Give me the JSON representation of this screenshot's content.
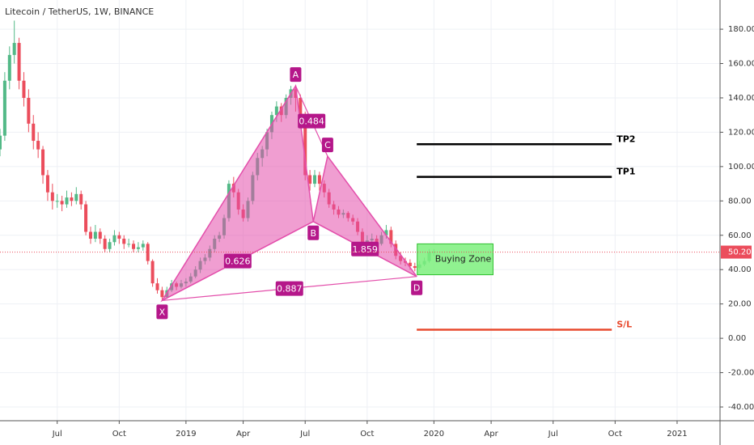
{
  "chart_data": {
    "type": "candlestick",
    "title": "Litecoin / TetherUS, 1W, BINANCE",
    "up_color": "#53b987",
    "down_color": "#eb4d5c",
    "grid": true,
    "candles": [
      [
        110,
        122,
        106,
        118
      ],
      [
        118,
        155,
        115,
        150
      ],
      [
        150,
        170,
        145,
        165
      ],
      [
        165,
        185,
        160,
        172
      ],
      [
        172,
        175,
        145,
        150
      ],
      [
        150,
        155,
        135,
        140
      ],
      [
        140,
        145,
        120,
        125
      ],
      [
        125,
        130,
        110,
        115
      ],
      [
        115,
        120,
        105,
        110
      ],
      [
        110,
        112,
        90,
        95
      ],
      [
        95,
        98,
        80,
        85
      ],
      [
        85,
        90,
        75,
        80
      ],
      [
        80,
        84,
        76,
        80
      ],
      [
        80,
        83,
        74,
        78
      ],
      [
        78,
        86,
        76,
        82
      ],
      [
        82,
        85,
        77,
        80
      ],
      [
        80,
        88,
        78,
        84
      ],
      [
        84,
        86,
        75,
        78
      ],
      [
        78,
        80,
        60,
        62
      ],
      [
        62,
        65,
        55,
        58
      ],
      [
        58,
        66,
        56,
        62
      ],
      [
        62,
        64,
        55,
        58
      ],
      [
        58,
        60,
        50,
        52
      ],
      [
        52,
        58,
        50,
        56
      ],
      [
        56,
        63,
        54,
        60
      ],
      [
        60,
        62,
        55,
        58
      ],
      [
        58,
        60,
        52,
        55
      ],
      [
        55,
        58,
        53,
        55
      ],
      [
        55,
        57,
        50,
        52
      ],
      [
        52,
        56,
        50,
        53
      ],
      [
        53,
        57,
        51,
        55
      ],
      [
        55,
        56,
        43,
        45
      ],
      [
        45,
        46,
        30,
        32
      ],
      [
        32,
        35,
        26,
        28
      ],
      [
        28,
        30,
        22,
        24
      ],
      [
        24,
        30,
        23,
        28
      ],
      [
        28,
        34,
        27,
        32
      ],
      [
        32,
        33,
        28,
        30
      ],
      [
        30,
        34,
        29,
        32
      ],
      [
        32,
        35,
        30,
        33
      ],
      [
        33,
        38,
        32,
        36
      ],
      [
        36,
        42,
        35,
        40
      ],
      [
        40,
        47,
        38,
        45
      ],
      [
        45,
        49,
        43,
        47
      ],
      [
        47,
        54,
        45,
        52
      ],
      [
        52,
        60,
        50,
        58
      ],
      [
        58,
        62,
        56,
        60
      ],
      [
        60,
        72,
        58,
        70
      ],
      [
        70,
        92,
        68,
        90
      ],
      [
        90,
        94,
        82,
        85
      ],
      [
        85,
        87,
        72,
        75
      ],
      [
        75,
        78,
        68,
        70
      ],
      [
        70,
        82,
        68,
        80
      ],
      [
        80,
        97,
        78,
        95
      ],
      [
        95,
        108,
        92,
        105
      ],
      [
        105,
        112,
        100,
        110
      ],
      [
        110,
        122,
        106,
        120
      ],
      [
        120,
        132,
        116,
        130
      ],
      [
        130,
        138,
        126,
        135
      ],
      [
        135,
        137,
        126,
        130
      ],
      [
        130,
        142,
        128,
        140
      ],
      [
        140,
        147,
        136,
        145
      ],
      [
        145,
        146,
        132,
        140
      ],
      [
        140,
        142,
        126,
        130
      ],
      [
        130,
        132,
        92,
        95
      ],
      [
        95,
        98,
        86,
        90
      ],
      [
        90,
        98,
        88,
        95
      ],
      [
        95,
        97,
        86,
        90
      ],
      [
        90,
        92,
        82,
        85
      ],
      [
        85,
        87,
        76,
        78
      ],
      [
        78,
        80,
        72,
        75
      ],
      [
        75,
        77,
        70,
        72
      ],
      [
        72,
        75,
        70,
        73
      ],
      [
        73,
        74,
        68,
        70
      ],
      [
        70,
        72,
        66,
        68
      ],
      [
        68,
        70,
        60,
        62
      ],
      [
        62,
        64,
        53,
        55
      ],
      [
        55,
        60,
        53,
        57
      ],
      [
        57,
        61,
        55,
        58
      ],
      [
        58,
        60,
        53,
        55
      ],
      [
        55,
        62,
        54,
        60
      ],
      [
        60,
        66,
        58,
        63
      ],
      [
        63,
        65,
        53,
        55
      ],
      [
        55,
        57,
        46,
        48
      ],
      [
        48,
        50,
        43,
        45
      ],
      [
        45,
        47,
        42,
        44
      ],
      [
        44,
        46,
        40,
        42
      ],
      [
        42,
        44,
        39,
        41
      ],
      [
        41,
        45,
        40,
        43
      ],
      [
        43,
        47,
        42,
        45
      ],
      [
        45,
        52,
        44,
        50
      ],
      [
        50,
        52,
        48,
        50.2
      ]
    ],
    "xlim": [
      0,
      151
    ],
    "xticks": [
      {
        "value": 12,
        "label": "Jul"
      },
      {
        "value": 25,
        "label": "Oct"
      },
      {
        "value": 39,
        "label": "2019"
      },
      {
        "value": 51,
        "label": "Apr"
      },
      {
        "value": 64,
        "label": "Jul"
      },
      {
        "value": 77,
        "label": "Oct"
      },
      {
        "value": 91,
        "label": "2020"
      },
      {
        "value": 103,
        "label": "Apr"
      },
      {
        "value": 116,
        "label": "Jul"
      },
      {
        "value": 129,
        "label": "Oct"
      },
      {
        "value": 142,
        "label": "2021"
      }
    ],
    "ylim": [
      -48,
      197
    ],
    "yticks": [
      {
        "value": -40,
        "label": "-40.00"
      },
      {
        "value": -20,
        "label": "-20.00"
      },
      {
        "value": 0,
        "label": "0.00"
      },
      {
        "value": 20,
        "label": "20.00"
      },
      {
        "value": 40,
        "label": "40.00"
      },
      {
        "value": 60,
        "label": "60.00"
      },
      {
        "value": 80,
        "label": "80.00"
      },
      {
        "value": 100,
        "label": "100.00"
      },
      {
        "value": 120,
        "label": "120.00"
      },
      {
        "value": 140,
        "label": "140.00"
      },
      {
        "value": 160,
        "label": "160.00"
      },
      {
        "value": 180,
        "label": "180.00"
      }
    ],
    "pattern_color": "#e34fab",
    "pattern": [
      {
        "label": "X",
        "x": 34,
        "y": 22
      },
      {
        "label": "A",
        "x": 62,
        "y": 147
      },
      {
        "label": "B",
        "x": 65.7,
        "y": 68
      },
      {
        "label": "C",
        "x": 68.7,
        "y": 106
      },
      {
        "label": "D",
        "x": 87.4,
        "y": 36
      }
    ],
    "ratios": [
      0.626,
      0.484,
      1.859,
      0.887
    ],
    "levels_x": [
      87.4,
      128.3
    ],
    "levels": [
      {
        "label": "TP2",
        "value": 113,
        "color": "#000000"
      },
      {
        "label": "TP1",
        "value": 94,
        "color": "#000000"
      },
      {
        "label": "S/L",
        "value": 5,
        "color": "#e84a2e"
      }
    ],
    "zone": {
      "label": "Buying Zone",
      "x": [
        87.5,
        103.4
      ],
      "y": [
        37,
        55
      ]
    },
    "last_price": {
      "value": 50.2,
      "label": "50.20"
    }
  }
}
